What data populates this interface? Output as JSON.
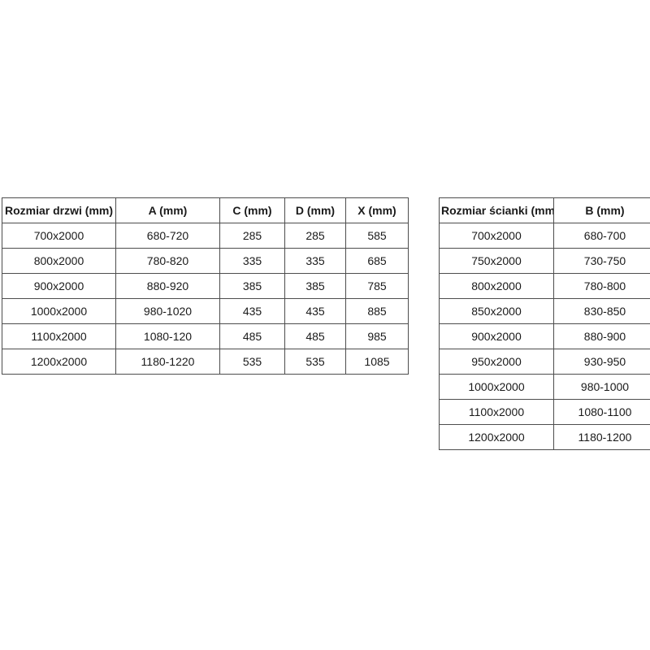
{
  "colors": {
    "background": "#ffffff",
    "border": "#4d4d4d",
    "text": "#1a1a1a"
  },
  "tables": [
    {
      "name": "door-sizes-table",
      "headers": [
        "Rozmiar drzwi (mm)",
        "A (mm)",
        "C (mm)",
        "D (mm)",
        "X (mm)"
      ],
      "rows": [
        [
          "700x2000",
          "680-720",
          "285",
          "285",
          "585"
        ],
        [
          "800x2000",
          "780-820",
          "335",
          "335",
          "685"
        ],
        [
          "900x2000",
          "880-920",
          "385",
          "385",
          "785"
        ],
        [
          "1000x2000",
          "980-1020",
          "435",
          "435",
          "885"
        ],
        [
          "1100x2000",
          "1080-120",
          "485",
          "485",
          "985"
        ],
        [
          "1200x2000",
          "1180-1220",
          "535",
          "535",
          "1085"
        ]
      ]
    },
    {
      "name": "wall-sizes-table",
      "headers": [
        "Rozmiar ścianki (mm)",
        "B (mm)"
      ],
      "rows": [
        [
          "700x2000",
          "680-700"
        ],
        [
          "750x2000",
          "730-750"
        ],
        [
          "800x2000",
          "780-800"
        ],
        [
          "850x2000",
          "830-850"
        ],
        [
          "900x2000",
          "880-900"
        ],
        [
          "950x2000",
          "930-950"
        ],
        [
          "1000x2000",
          "980-1000"
        ],
        [
          "1100x2000",
          "1080-1100"
        ],
        [
          "1200x2000",
          "1180-1200"
        ]
      ]
    }
  ]
}
